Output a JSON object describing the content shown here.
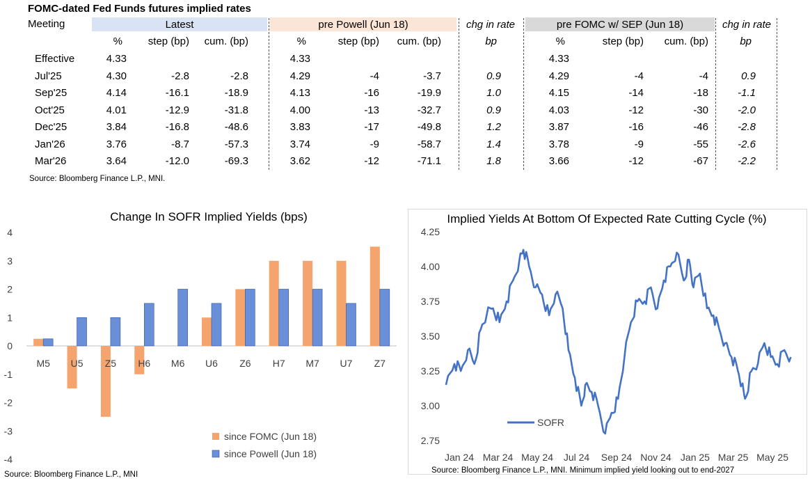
{
  "table": {
    "title": "FOMC-dated Fed Funds futures implied rates",
    "meeting_label": "Meeting",
    "groups": [
      {
        "label": "Latest",
        "color": "#dae3f3"
      },
      {
        "label": "pre Powell (Jun 18)",
        "color": "#fbe5d6"
      },
      {
        "label": "chg in rate",
        "color": "#ffffff"
      },
      {
        "label": "pre FOMC w/ SEP (Jun 18)",
        "color": "#d9d9d9"
      },
      {
        "label": "chg in rate",
        "color": "#ffffff"
      }
    ],
    "subheaders": [
      "%",
      "step (bp)",
      "cum. (bp)",
      "%",
      "step (bp)",
      "cum. (bp)",
      "bp",
      "%",
      "step (bp)",
      "cum. (bp)",
      "bp"
    ],
    "rows": [
      [
        "Effective",
        "4.33",
        "",
        "",
        "4.33",
        "",
        "",
        "",
        "4.33",
        "",
        "",
        ""
      ],
      [
        "Jul'25",
        "4.30",
        "-2.8",
        "-2.8",
        "4.29",
        "-4",
        "-3.7",
        "0.9",
        "4.29",
        "-4",
        "-4",
        "0.9"
      ],
      [
        "Sep'25",
        "4.14",
        "-16.1",
        "-18.9",
        "4.13",
        "-16",
        "-19.9",
        "1.0",
        "4.15",
        "-14",
        "-18",
        "-1.1"
      ],
      [
        "Oct'25",
        "4.01",
        "-12.9",
        "-31.8",
        "4.00",
        "-13",
        "-32.7",
        "0.9",
        "4.03",
        "-12",
        "-30",
        "-2.0"
      ],
      [
        "Dec'25",
        "3.84",
        "-16.8",
        "-48.6",
        "3.83",
        "-17",
        "-49.8",
        "1.2",
        "3.87",
        "-16",
        "-46",
        "-2.8"
      ],
      [
        "Jan'26",
        "3.76",
        "-8.7",
        "-57.3",
        "3.74",
        "-9",
        "-58.7",
        "1.4",
        "3.78",
        "-9",
        "-55",
        "-2.6"
      ],
      [
        "Mar'26",
        "3.64",
        "-12.0",
        "-69.3",
        "3.62",
        "-12",
        "-71.1",
        "1.8",
        "3.66",
        "-12",
        "-67",
        "-2.2"
      ]
    ],
    "source": "Source: Bloomberg Finance L.P., MNI."
  },
  "chart_data": [
    {
      "type": "bar",
      "title": "Change In SOFR Implied Yields (bps)",
      "categories": [
        "M5",
        "U5",
        "Z5",
        "H6",
        "M6",
        "U6",
        "Z6",
        "H7",
        "M7",
        "U7",
        "Z7"
      ],
      "series": [
        {
          "name": "since FOMC (Jun 18)",
          "color": "#f4a46c",
          "values": [
            0.25,
            -1.5,
            -2.5,
            -1,
            0,
            1,
            2,
            3,
            3,
            3,
            3.5
          ]
        },
        {
          "name": "since Powell (Jun 18)",
          "color": "#6a8fd9",
          "values": [
            0.25,
            1,
            1,
            1.5,
            2,
            1.5,
            2,
            2,
            2,
            1.5,
            2
          ]
        }
      ],
      "ylim": [
        -4,
        4
      ],
      "yticks": [
        "4",
        "3",
        "2",
        "1",
        "0",
        "-1",
        "-2",
        "-3",
        "-4"
      ],
      "legend": "bottom-right",
      "source": "Source: Bloomberg Finance L.P., MNI"
    },
    {
      "type": "line",
      "title": "Implied Yields At Bottom Of Expected Rate Cutting Cycle (%)",
      "x_ticks": [
        "Jan 24",
        "Mar 24",
        "May 24",
        "Jul 24",
        "Sep 24",
        "Nov 24",
        "Jan 25",
        "Mar 25",
        "May 25"
      ],
      "ylim": [
        2.75,
        4.25
      ],
      "yticks": [
        "4.25",
        "4.00",
        "3.75",
        "3.50",
        "3.25",
        "3.00",
        "2.75"
      ],
      "series": [
        {
          "name": "SOFR",
          "color": "#4472c4",
          "x": [
            "2024-01-02",
            "2024-01-15",
            "2024-01-25",
            "2024-02-05",
            "2024-02-15",
            "2024-02-25",
            "2024-03-05",
            "2024-03-15",
            "2024-03-25",
            "2024-04-05",
            "2024-04-15",
            "2024-04-25",
            "2024-05-01",
            "2024-05-10",
            "2024-05-20",
            "2024-05-30",
            "2024-06-10",
            "2024-06-20",
            "2024-07-01",
            "2024-07-10",
            "2024-07-20",
            "2024-07-30",
            "2024-08-05",
            "2024-08-15",
            "2024-08-25",
            "2024-09-05",
            "2024-09-15",
            "2024-09-25",
            "2024-10-05",
            "2024-10-15",
            "2024-10-25",
            "2024-11-05",
            "2024-11-15",
            "2024-11-25",
            "2024-12-05",
            "2024-12-15",
            "2024-12-25",
            "2025-01-05",
            "2025-01-13",
            "2025-01-20",
            "2025-01-30",
            "2025-02-10",
            "2025-02-20",
            "2025-03-01",
            "2025-03-10",
            "2025-03-20",
            "2025-03-30",
            "2025-04-05",
            "2025-04-10",
            "2025-04-20",
            "2025-04-30",
            "2025-05-10",
            "2025-05-20",
            "2025-05-30",
            "2025-06-10",
            "2025-06-20"
          ],
          "y": [
            3.15,
            3.3,
            3.25,
            3.4,
            3.3,
            3.55,
            3.65,
            3.7,
            3.6,
            3.75,
            3.9,
            4.05,
            4.12,
            4.0,
            3.85,
            3.8,
            3.65,
            3.8,
            3.7,
            3.4,
            3.2,
            3.0,
            3.15,
            3.1,
            3.0,
            2.8,
            2.95,
            3.05,
            3.35,
            3.6,
            3.75,
            3.75,
            3.85,
            3.7,
            3.9,
            4.0,
            4.1,
            3.9,
            4.05,
            3.85,
            3.95,
            3.7,
            3.65,
            3.55,
            3.45,
            3.35,
            3.25,
            3.15,
            3.05,
            3.25,
            3.3,
            3.45,
            3.35,
            3.3,
            3.4,
            3.35
          ]
        }
      ],
      "legend": "bottom-left",
      "source": "Source: Bloomberg Finance L.P., MNI. Minimum implied yield looking out to end-2027"
    }
  ]
}
